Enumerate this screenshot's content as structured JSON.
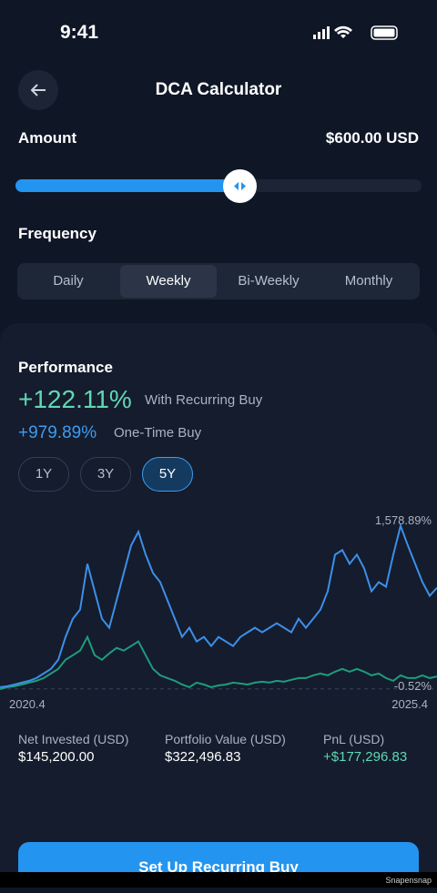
{
  "status_bar": {
    "time": "9:41"
  },
  "header": {
    "title": "DCA Calculator"
  },
  "amount": {
    "label": "Amount",
    "value": "$600.00 USD"
  },
  "frequency": {
    "label": "Frequency",
    "options": [
      "Daily",
      "Weekly",
      "Bi-Weekly",
      "Monthly"
    ],
    "selected": "Weekly"
  },
  "performance": {
    "title": "Performance",
    "recurring_value": "+122.11%",
    "recurring_label": "With Recurring Buy",
    "one_time_value": "+979.89%",
    "one_time_label": "One-Time Buy",
    "ranges": [
      "1Y",
      "3Y",
      "5Y"
    ],
    "selected_range": "5Y"
  },
  "chart": {
    "type": "line",
    "ylim": [
      -100,
      1700
    ],
    "x_labels": [
      "2020.4",
      "2025.4"
    ],
    "annotations": [
      "1,578.89%",
      "-0.52%"
    ],
    "series": [
      {
        "color": "#3d8fe8",
        "values": [
          18,
          27,
          44,
          62,
          80,
          106,
          150,
          195,
          283,
          504,
          681,
          770,
          1212,
          947,
          681,
          593,
          858,
          1124,
          1389,
          1522,
          1301,
          1124,
          1035,
          858,
          681,
          504,
          593,
          460,
          504,
          416,
          504,
          460,
          416,
          504,
          549,
          593,
          549,
          593,
          637,
          593,
          549,
          681,
          593,
          681,
          770,
          947,
          1301,
          1345,
          1212,
          1301,
          1168,
          947,
          1035,
          991,
          1301,
          1578.89,
          1389,
          1212,
          1035,
          903,
          979.89
        ]
      },
      {
        "color": "#1f9c7c",
        "values": [
          -0.52,
          18,
          27,
          44,
          62,
          80,
          106,
          150,
          195,
          283,
          327,
          372,
          504,
          327,
          283,
          345,
          398,
          372,
          416,
          460,
          327,
          195,
          133,
          106,
          80,
          44,
          18,
          62,
          44,
          18,
          35,
          44,
          62,
          53,
          44,
          62,
          71,
          62,
          80,
          71,
          89,
          106,
          106,
          133,
          150,
          133,
          168,
          195,
          168,
          195,
          168,
          133,
          150,
          106,
          80,
          133,
          106,
          106,
          133,
          106,
          122.11
        ]
      }
    ]
  },
  "stats": [
    {
      "label": "Net Invested (USD)",
      "value": "$145,200.00"
    },
    {
      "label": "Portfolio Value (USD)",
      "value": "$322,496.83"
    },
    {
      "label": "PnL (USD)",
      "value": "+$177,296.83"
    }
  ],
  "button": {
    "label": "Set Up Recurring Buy"
  },
  "watermark": "Snapensnap"
}
